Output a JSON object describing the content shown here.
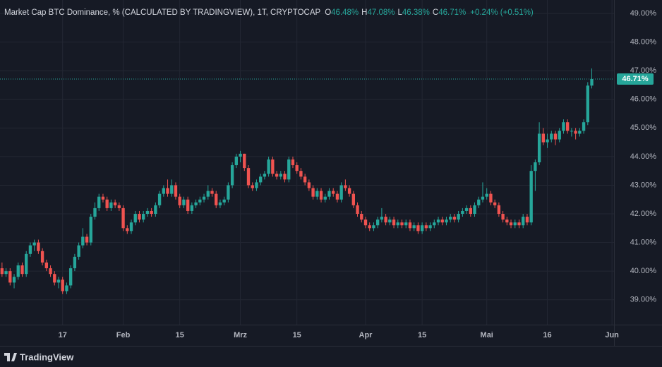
{
  "chart_data": {
    "type": "candlestick",
    "title": "Market Cap BTC Dominance, % (CALCULATED BY TRADINGVIEW), 1T, CRYPTOCAP",
    "ohlc_legend": [
      {
        "key": "O",
        "value": "46.48%"
      },
      {
        "key": "H",
        "value": "47.08%"
      },
      {
        "key": "L",
        "value": "46.38%"
      },
      {
        "key": "C",
        "value": "46.71%"
      }
    ],
    "change": "+0.24% (+0.51%)",
    "up_color": "#26a69a",
    "down_color": "#ef5350",
    "ylim": [
      38.13,
      49.47
    ],
    "yticks": [
      {
        "value": 39,
        "label": "39.00%"
      },
      {
        "value": 40,
        "label": "40.00%"
      },
      {
        "value": 41,
        "label": "41.00%"
      },
      {
        "value": 42,
        "label": "42.00%"
      },
      {
        "value": 43,
        "label": "43.00%"
      },
      {
        "value": 44,
        "label": "44.00%"
      },
      {
        "value": 45,
        "label": "45.00%"
      },
      {
        "value": 46,
        "label": "46.00%"
      },
      {
        "value": 47,
        "label": "47.00%"
      },
      {
        "value": 48,
        "label": "48.00%"
      },
      {
        "value": 49,
        "label": "49.00%"
      }
    ],
    "last_price": {
      "value": 46.71,
      "label": "46.71%"
    },
    "grid": true,
    "brand": "TradingView",
    "categories": [
      null,
      null,
      null,
      null,
      null,
      null,
      null,
      null,
      null,
      null,
      null,
      null,
      null,
      null,
      null,
      "17",
      null,
      null,
      null,
      null,
      null,
      null,
      null,
      null,
      null,
      null,
      null,
      null,
      null,
      null,
      "Feb",
      null,
      null,
      null,
      null,
      null,
      null,
      null,
      null,
      null,
      null,
      null,
      null,
      null,
      "15",
      null,
      null,
      null,
      null,
      null,
      null,
      null,
      null,
      null,
      null,
      null,
      null,
      null,
      null,
      "Mrz",
      null,
      null,
      null,
      null,
      null,
      null,
      null,
      null,
      null,
      null,
      null,
      null,
      null,
      "15",
      null,
      null,
      null,
      null,
      null,
      null,
      null,
      null,
      null,
      null,
      null,
      null,
      null,
      null,
      null,
      null,
      "Apr",
      null,
      null,
      null,
      null,
      null,
      null,
      null,
      null,
      null,
      null,
      null,
      null,
      null,
      "15",
      null,
      null,
      null,
      null,
      null,
      null,
      null,
      null,
      null,
      null,
      null,
      null,
      null,
      null,
      null,
      "Mai",
      null,
      null,
      null,
      null,
      null,
      null,
      null,
      null,
      null,
      null,
      null,
      null,
      null,
      null,
      "16",
      null,
      null,
      null,
      null,
      null,
      null,
      null,
      null,
      null,
      null,
      null,
      null,
      null,
      null,
      null,
      "Jun"
    ],
    "candles": [
      [
        40.1,
        40.3,
        39.8,
        39.9
      ],
      [
        39.9,
        40.1,
        39.8,
        40.0
      ],
      [
        40.0,
        40.1,
        39.5,
        39.6
      ],
      [
        39.6,
        39.9,
        39.4,
        39.8
      ],
      [
        39.8,
        40.3,
        39.7,
        40.2
      ],
      [
        40.2,
        40.3,
        39.8,
        39.9
      ],
      [
        39.9,
        40.7,
        39.8,
        40.6
      ],
      [
        40.6,
        41.0,
        40.5,
        40.9
      ],
      [
        40.9,
        41.1,
        40.7,
        41.0
      ],
      [
        41.0,
        41.1,
        40.6,
        40.7
      ],
      [
        40.7,
        40.8,
        40.2,
        40.3
      ],
      [
        40.3,
        40.4,
        40.0,
        40.1
      ],
      [
        40.1,
        40.2,
        39.8,
        39.9
      ],
      [
        39.9,
        40.0,
        39.5,
        39.6
      ],
      [
        39.6,
        39.8,
        39.4,
        39.7
      ],
      [
        39.7,
        39.8,
        39.2,
        39.3
      ],
      [
        39.3,
        39.6,
        39.2,
        39.5
      ],
      [
        39.5,
        40.2,
        39.4,
        40.1
      ],
      [
        40.1,
        40.6,
        40.0,
        40.5
      ],
      [
        40.5,
        41.0,
        40.4,
        40.9
      ],
      [
        40.9,
        41.5,
        40.8,
        41.2
      ],
      [
        41.2,
        41.3,
        40.9,
        41.0
      ],
      [
        41.0,
        42.0,
        40.9,
        41.9
      ],
      [
        41.9,
        42.4,
        41.8,
        42.2
      ],
      [
        42.2,
        42.7,
        42.1,
        42.6
      ],
      [
        42.6,
        42.7,
        42.4,
        42.5
      ],
      [
        42.5,
        42.6,
        42.1,
        42.2
      ],
      [
        42.2,
        42.5,
        42.1,
        42.4
      ],
      [
        42.4,
        42.5,
        42.2,
        42.3
      ],
      [
        42.3,
        42.4,
        42.1,
        42.2
      ],
      [
        42.2,
        42.3,
        41.4,
        41.5
      ],
      [
        41.5,
        41.6,
        41.3,
        41.4
      ],
      [
        41.4,
        41.8,
        41.3,
        41.7
      ],
      [
        41.7,
        42.1,
        41.6,
        42.0
      ],
      [
        42.0,
        42.1,
        41.7,
        41.8
      ],
      [
        41.8,
        42.1,
        41.7,
        42.0
      ],
      [
        42.0,
        42.2,
        41.9,
        42.1
      ],
      [
        42.1,
        42.2,
        41.9,
        42.0
      ],
      [
        42.0,
        42.4,
        41.9,
        42.3
      ],
      [
        42.3,
        42.8,
        42.2,
        42.7
      ],
      [
        42.7,
        43.0,
        42.6,
        42.9
      ],
      [
        42.9,
        43.2,
        42.6,
        42.7
      ],
      [
        42.7,
        43.2,
        42.6,
        43.0
      ],
      [
        43.0,
        43.1,
        42.5,
        42.6
      ],
      [
        42.6,
        42.7,
        42.2,
        42.3
      ],
      [
        42.3,
        42.6,
        42.2,
        42.5
      ],
      [
        42.5,
        42.6,
        42.0,
        42.1
      ],
      [
        42.1,
        42.4,
        42.0,
        42.3
      ],
      [
        42.3,
        42.5,
        42.2,
        42.4
      ],
      [
        42.4,
        42.6,
        42.3,
        42.5
      ],
      [
        42.5,
        42.7,
        42.4,
        42.6
      ],
      [
        42.6,
        43.0,
        42.5,
        42.8
      ],
      [
        42.8,
        42.9,
        42.6,
        42.7
      ],
      [
        42.7,
        42.8,
        42.2,
        42.3
      ],
      [
        42.3,
        42.5,
        42.2,
        42.4
      ],
      [
        42.4,
        42.6,
        42.3,
        42.5
      ],
      [
        42.5,
        43.1,
        42.4,
        43.0
      ],
      [
        43.0,
        43.8,
        42.9,
        43.7
      ],
      [
        43.7,
        44.1,
        43.6,
        44.0
      ],
      [
        44.0,
        44.2,
        43.8,
        44.1
      ],
      [
        44.1,
        44.1,
        43.5,
        43.6
      ],
      [
        43.6,
        43.7,
        42.9,
        43.0
      ],
      [
        43.0,
        43.1,
        42.8,
        42.9
      ],
      [
        42.9,
        43.2,
        42.8,
        43.1
      ],
      [
        43.1,
        43.4,
        43.0,
        43.3
      ],
      [
        43.3,
        43.5,
        43.2,
        43.4
      ],
      [
        43.4,
        44.0,
        43.3,
        43.9
      ],
      [
        43.9,
        44.0,
        43.3,
        43.4
      ],
      [
        43.4,
        43.5,
        43.2,
        43.3
      ],
      [
        43.3,
        43.5,
        43.2,
        43.4
      ],
      [
        43.4,
        43.5,
        43.1,
        43.2
      ],
      [
        43.2,
        44.0,
        43.1,
        43.9
      ],
      [
        43.9,
        44.0,
        43.6,
        43.7
      ],
      [
        43.7,
        43.8,
        43.4,
        43.5
      ],
      [
        43.5,
        43.6,
        43.2,
        43.3
      ],
      [
        43.3,
        43.4,
        43.0,
        43.1
      ],
      [
        43.1,
        43.2,
        42.8,
        42.9
      ],
      [
        42.9,
        43.0,
        42.5,
        42.6
      ],
      [
        42.6,
        42.9,
        42.5,
        42.8
      ],
      [
        42.8,
        42.9,
        42.4,
        42.5
      ],
      [
        42.5,
        42.7,
        42.4,
        42.6
      ],
      [
        42.6,
        42.9,
        42.5,
        42.8
      ],
      [
        42.8,
        42.9,
        42.6,
        42.7
      ],
      [
        42.7,
        42.8,
        42.4,
        42.5
      ],
      [
        42.5,
        43.1,
        42.4,
        43.0
      ],
      [
        43.0,
        43.2,
        42.8,
        42.9
      ],
      [
        42.9,
        43.0,
        42.6,
        42.7
      ],
      [
        42.7,
        42.8,
        42.2,
        42.3
      ],
      [
        42.3,
        42.4,
        41.9,
        42.0
      ],
      [
        42.0,
        42.1,
        41.7,
        41.8
      ],
      [
        41.8,
        41.9,
        41.5,
        41.6
      ],
      [
        41.6,
        41.7,
        41.4,
        41.5
      ],
      [
        41.5,
        41.7,
        41.4,
        41.6
      ],
      [
        41.6,
        41.9,
        41.5,
        41.8
      ],
      [
        41.8,
        42.2,
        41.7,
        41.9
      ],
      [
        41.9,
        42.0,
        41.6,
        41.7
      ],
      [
        41.7,
        41.9,
        41.6,
        41.8
      ],
      [
        41.8,
        41.9,
        41.5,
        41.6
      ],
      [
        41.6,
        41.8,
        41.5,
        41.7
      ],
      [
        41.7,
        41.8,
        41.5,
        41.6
      ],
      [
        41.6,
        41.8,
        41.5,
        41.7
      ],
      [
        41.7,
        41.8,
        41.4,
        41.5
      ],
      [
        41.5,
        41.7,
        41.4,
        41.6
      ],
      [
        41.6,
        41.7,
        41.3,
        41.4
      ],
      [
        41.4,
        41.7,
        41.3,
        41.6
      ],
      [
        41.6,
        41.7,
        41.4,
        41.5
      ],
      [
        41.5,
        41.7,
        41.4,
        41.6
      ],
      [
        41.6,
        41.8,
        41.5,
        41.7
      ],
      [
        41.7,
        41.9,
        41.6,
        41.8
      ],
      [
        41.8,
        41.9,
        41.6,
        41.7
      ],
      [
        41.7,
        41.9,
        41.6,
        41.8
      ],
      [
        41.8,
        42.0,
        41.7,
        41.9
      ],
      [
        41.9,
        42.0,
        41.7,
        41.8
      ],
      [
        41.8,
        42.1,
        41.7,
        42.0
      ],
      [
        42.0,
        42.2,
        41.9,
        42.1
      ],
      [
        42.1,
        42.3,
        42.0,
        42.2
      ],
      [
        42.2,
        42.3,
        41.9,
        42.0
      ],
      [
        42.0,
        42.4,
        41.9,
        42.3
      ],
      [
        42.3,
        42.6,
        42.2,
        42.5
      ],
      [
        42.5,
        43.1,
        42.4,
        42.6
      ],
      [
        42.6,
        42.9,
        42.5,
        42.7
      ],
      [
        42.7,
        42.8,
        42.3,
        42.4
      ],
      [
        42.4,
        42.5,
        42.2,
        42.3
      ],
      [
        42.3,
        42.4,
        41.9,
        42.0
      ],
      [
        42.0,
        42.1,
        41.7,
        41.8
      ],
      [
        41.8,
        41.9,
        41.6,
        41.7
      ],
      [
        41.7,
        41.8,
        41.5,
        41.6
      ],
      [
        41.6,
        41.8,
        41.5,
        41.7
      ],
      [
        41.7,
        41.8,
        41.5,
        41.6
      ],
      [
        41.6,
        42.0,
        41.5,
        41.9
      ],
      [
        41.9,
        42.0,
        41.6,
        41.7
      ],
      [
        41.7,
        43.7,
        41.6,
        43.5
      ],
      [
        43.5,
        43.9,
        42.8,
        43.8
      ],
      [
        43.8,
        45.2,
        43.7,
        44.8
      ],
      [
        44.8,
        45.0,
        44.4,
        44.5
      ],
      [
        44.5,
        44.8,
        44.3,
        44.6
      ],
      [
        44.6,
        44.9,
        44.5,
        44.8
      ],
      [
        44.8,
        44.9,
        44.4,
        44.6
      ],
      [
        44.6,
        45.0,
        44.5,
        44.9
      ],
      [
        44.9,
        45.3,
        44.8,
        45.2
      ],
      [
        45.2,
        45.3,
        44.8,
        44.9
      ],
      [
        44.9,
        45.0,
        44.7,
        44.9
      ],
      [
        44.9,
        45.0,
        44.6,
        44.8
      ],
      [
        44.8,
        45.0,
        44.7,
        44.9
      ],
      [
        44.9,
        45.3,
        44.8,
        45.2
      ],
      [
        45.2,
        46.6,
        45.1,
        46.48
      ],
      [
        46.48,
        47.08,
        46.38,
        46.71
      ],
      null,
      null,
      null,
      null,
      null
    ]
  }
}
